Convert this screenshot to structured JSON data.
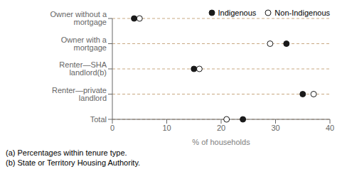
{
  "chart_data": {
    "type": "dot",
    "categories": [
      "Owner without a mortgage",
      "Owner with a mortgage",
      "Renter—SHA landlord(b)",
      "Renter—private landlord",
      "Total"
    ],
    "series": [
      {
        "name": "Indigenous",
        "color": "#1a1a1a",
        "marker": "filled",
        "values": [
          4,
          32,
          15,
          35,
          24
        ]
      },
      {
        "name": "Non-Indigenous",
        "color": "#1a1a1a",
        "marker": "open",
        "values": [
          5,
          29,
          16,
          37,
          21
        ]
      }
    ],
    "xlabel": "% of households",
    "xlim": [
      0,
      40
    ],
    "xticks": [
      0,
      10,
      20,
      30,
      40
    ],
    "grid": true,
    "legend": "upper right",
    "annotations": [
      "(a) Percentages within tenure type.",
      "(b) State or Territory Housing Authority."
    ]
  }
}
